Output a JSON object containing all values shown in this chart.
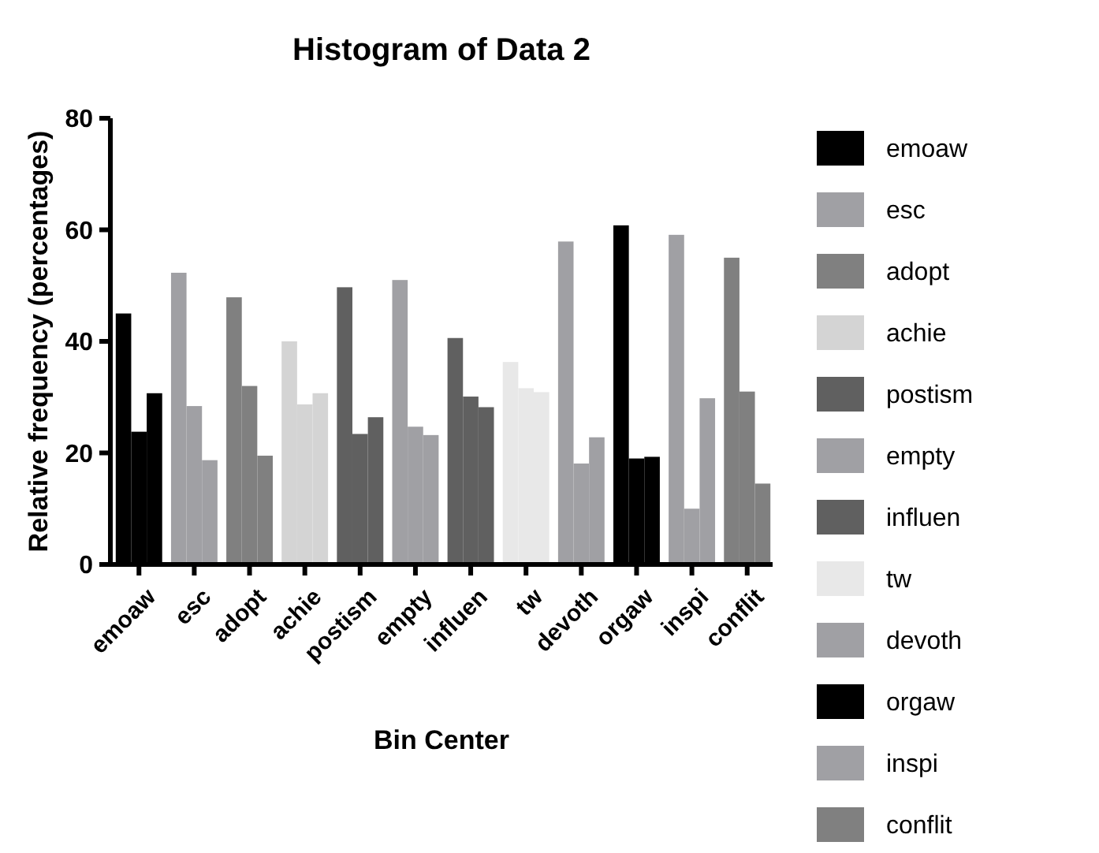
{
  "chart_data": {
    "type": "bar",
    "title": "Histogram of Data 2",
    "xlabel": "Bin Center",
    "ylabel": "Relative frequency (percentages)",
    "categories": [
      "emoaw",
      "esc",
      "adopt",
      "achie",
      "postism",
      "empty",
      "influen",
      "tw",
      "devoth",
      "orgaw",
      "inspi",
      "conflit"
    ],
    "ylim": [
      0,
      80
    ],
    "yticks": [
      0,
      20,
      40,
      60,
      80
    ],
    "grid": false,
    "series": [
      {
        "colors": [
          "#000000",
          "#a0a0a4",
          "#808080",
          "#d4d4d4",
          "#606060",
          "#a0a0a4",
          "#606060",
          "#e8e8e8",
          "#a0a0a4",
          "#000000",
          "#a0a0a4",
          "#808080"
        ],
        "values": [
          45.0,
          52.3,
          47.9,
          40.0,
          49.7,
          51.0,
          40.6,
          36.3,
          57.9,
          60.8,
          59.1,
          55.0
        ]
      },
      {
        "colors": [
          "#000000",
          "#a0a0a4",
          "#808080",
          "#d4d4d4",
          "#606060",
          "#a0a0a4",
          "#606060",
          "#e8e8e8",
          "#a0a0a4",
          "#000000",
          "#a0a0a4",
          "#808080"
        ],
        "values": [
          23.8,
          28.4,
          32.0,
          28.7,
          23.4,
          24.7,
          30.1,
          31.6,
          18.1,
          19.0,
          10.0,
          31.0
        ]
      },
      {
        "colors": [
          "#000000",
          "#a0a0a4",
          "#808080",
          "#d4d4d4",
          "#606060",
          "#a0a0a4",
          "#606060",
          "#e8e8e8",
          "#a0a0a4",
          "#000000",
          "#a0a0a4",
          "#808080"
        ],
        "values": [
          30.7,
          18.7,
          19.5,
          30.7,
          26.4,
          23.2,
          28.2,
          30.9,
          22.8,
          19.3,
          29.8,
          14.5
        ]
      }
    ]
  }
}
